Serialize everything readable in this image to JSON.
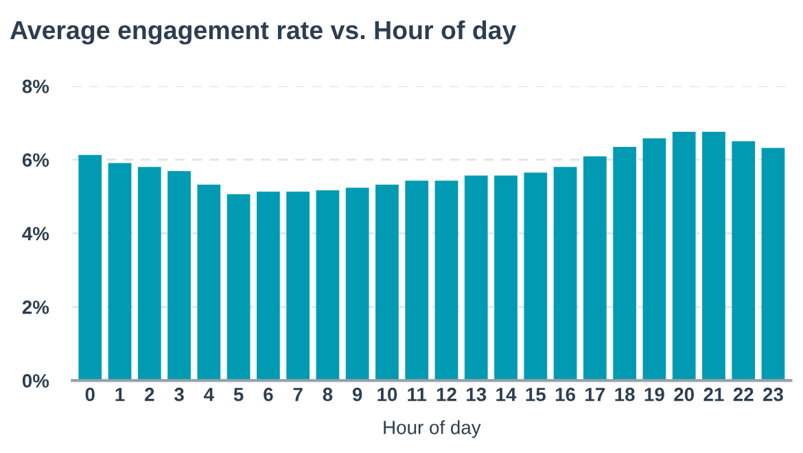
{
  "chart_data": {
    "type": "bar",
    "title": "Average engagement rate vs. Hour of day",
    "xlabel": "Hour of day",
    "categories": [
      "0",
      "1",
      "2",
      "3",
      "4",
      "5",
      "6",
      "7",
      "8",
      "9",
      "10",
      "11",
      "12",
      "13",
      "14",
      "15",
      "16",
      "17",
      "18",
      "19",
      "20",
      "21",
      "22",
      "23"
    ],
    "values": [
      6.13,
      5.91,
      5.8,
      5.69,
      5.32,
      5.06,
      5.13,
      5.13,
      5.17,
      5.24,
      5.32,
      5.43,
      5.43,
      5.57,
      5.57,
      5.65,
      5.8,
      6.09,
      6.35,
      6.58,
      6.76,
      6.76,
      6.5,
      6.32
    ],
    "color": "#009bb2",
    "ylim": [
      0,
      8
    ],
    "yticks": [
      {
        "value": 0,
        "label": "0%"
      },
      {
        "value": 2,
        "label": "2%"
      },
      {
        "value": 4,
        "label": "4%"
      },
      {
        "value": 6,
        "label": "6%"
      },
      {
        "value": 8,
        "label": "8%"
      }
    ],
    "grid": "y"
  }
}
